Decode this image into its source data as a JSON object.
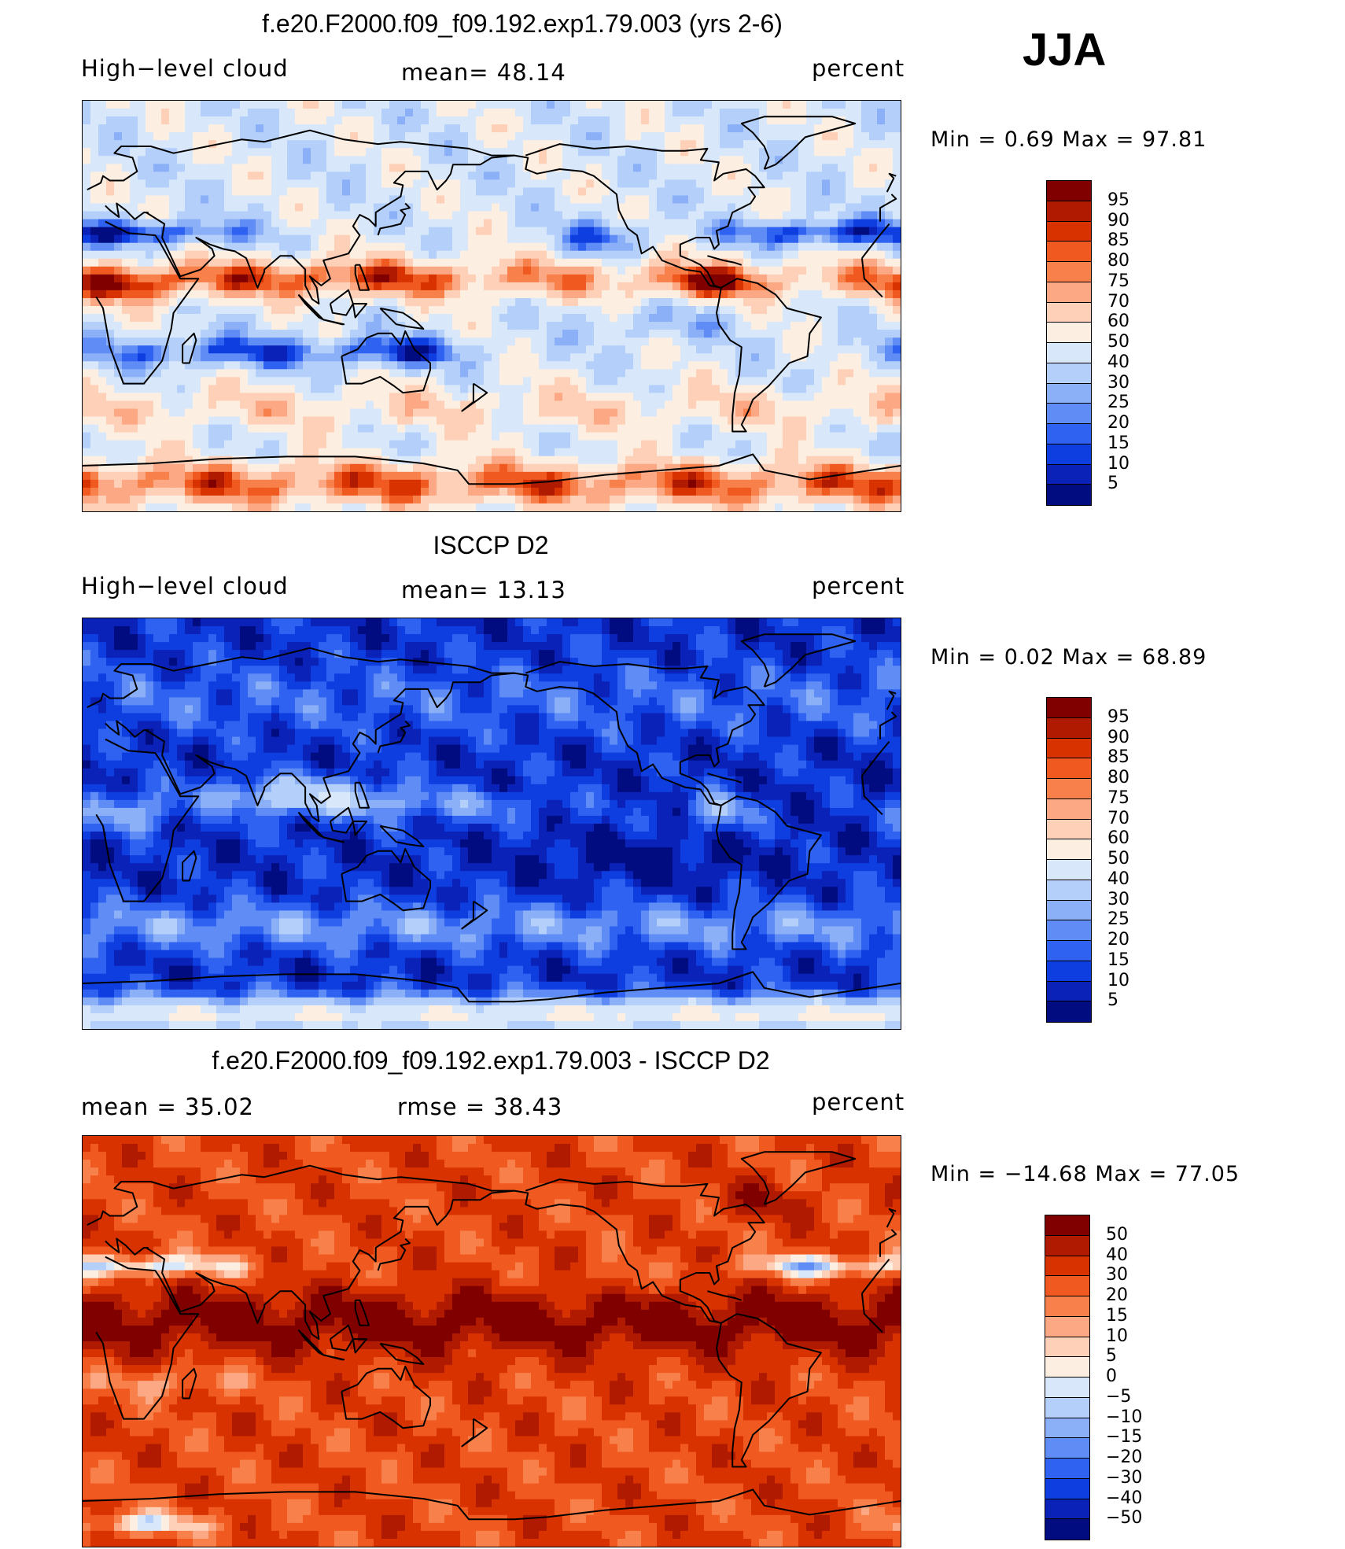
{
  "season": "JJA",
  "panels": [
    {
      "id": "model",
      "title": "f.e20.F2000.f09_f09.192.exp1.79.003 (yrs 2-6)",
      "left_label": "High−level cloud",
      "mid_label": "mean=   48.14",
      "right_label": "percent",
      "minmax": "Min  =     0.69  Max  =    97.81",
      "levels": [
        "95",
        "90",
        "85",
        "80",
        "75",
        "70",
        "60",
        "50",
        "40",
        "30",
        "25",
        "20",
        "15",
        "10",
        "5"
      ],
      "field": "model"
    },
    {
      "id": "obs",
      "title": "ISCCP D2",
      "left_label": "High−level cloud",
      "mid_label": "mean=   13.13",
      "right_label": "percent",
      "minmax": "Min  =     0.02  Max  =    68.89",
      "levels": [
        "95",
        "90",
        "85",
        "80",
        "75",
        "70",
        "60",
        "50",
        "40",
        "30",
        "25",
        "20",
        "15",
        "10",
        "5"
      ],
      "field": "obs"
    },
    {
      "id": "diff",
      "title": "f.e20.F2000.f09_f09.192.exp1.79.003 - ISCCP D2",
      "left_label": "mean  =    35.02",
      "mid_label": "rmse  =    38.43",
      "right_label": "percent",
      "minmax": "Min  = −14.68  Max  =    77.05",
      "levels": [
        "50",
        "40",
        "30",
        "20",
        "15",
        "10",
        "5",
        "0",
        "−5",
        "−10",
        "−15",
        "−20",
        "−30",
        "−40",
        "−50"
      ],
      "field": "diff"
    }
  ],
  "colors": {
    "palette": [
      "#800000",
      "#b01a00",
      "#d83200",
      "#f05a20",
      "#f8804a",
      "#fca884",
      "#fed0b8",
      "#fdeee2",
      "#d8e8fa",
      "#b4d0fa",
      "#8cb0f8",
      "#5f8cf5",
      "#2f62f0",
      "#0f3ee0",
      "#0a22b8",
      "#000c80"
    ]
  }
}
